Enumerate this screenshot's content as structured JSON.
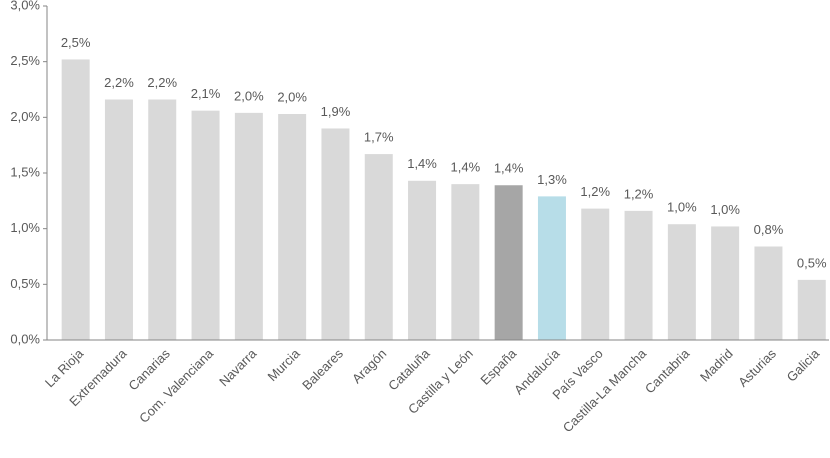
{
  "chart_data": {
    "type": "bar",
    "categories": [
      "La Rioja",
      "Extremadura",
      "Canarias",
      "Com. Valenciana",
      "Navarra",
      "Murcia",
      "Baleares",
      "Aragón",
      "Cataluña",
      "Castilla y León",
      "España",
      "Andalucía",
      "País Vasco",
      "Castilla-La Mancha",
      "Cantabria",
      "Madrid",
      "Asturias",
      "Galicia"
    ],
    "values": [
      2.52,
      2.16,
      2.16,
      2.06,
      2.04,
      2.03,
      1.9,
      1.67,
      1.43,
      1.4,
      1.39,
      1.29,
      1.18,
      1.16,
      1.04,
      1.02,
      0.84,
      0.54
    ],
    "value_labels": [
      "2,5%",
      "2,2%",
      "2,2%",
      "2,1%",
      "2,0%",
      "2,0%",
      "1,9%",
      "1,7%",
      "1,4%",
      "1,4%",
      "1,4%",
      "1,3%",
      "1,2%",
      "1,2%",
      "1,0%",
      "1,0%",
      "0,8%",
      "0,5%"
    ],
    "colors": [
      "#d9d9d9",
      "#d9d9d9",
      "#d9d9d9",
      "#d9d9d9",
      "#d9d9d9",
      "#d9d9d9",
      "#d9d9d9",
      "#d9d9d9",
      "#d9d9d9",
      "#d9d9d9",
      "#a6a6a6",
      "#b7dde8",
      "#d9d9d9",
      "#d9d9d9",
      "#d9d9d9",
      "#d9d9d9",
      "#d9d9d9",
      "#d9d9d9"
    ],
    "ylim": [
      0,
      3
    ],
    "yticks": [
      {
        "value": 0,
        "label": "0,0%"
      },
      {
        "value": 0.5,
        "label": "0,5%"
      },
      {
        "value": 1,
        "label": "1,0%"
      },
      {
        "value": 1.5,
        "label": "1,5%"
      },
      {
        "value": 2,
        "label": "2,0%"
      },
      {
        "value": 2.5,
        "label": "2,5%"
      },
      {
        "value": 3,
        "label": "3,0%"
      }
    ],
    "grid": false
  }
}
